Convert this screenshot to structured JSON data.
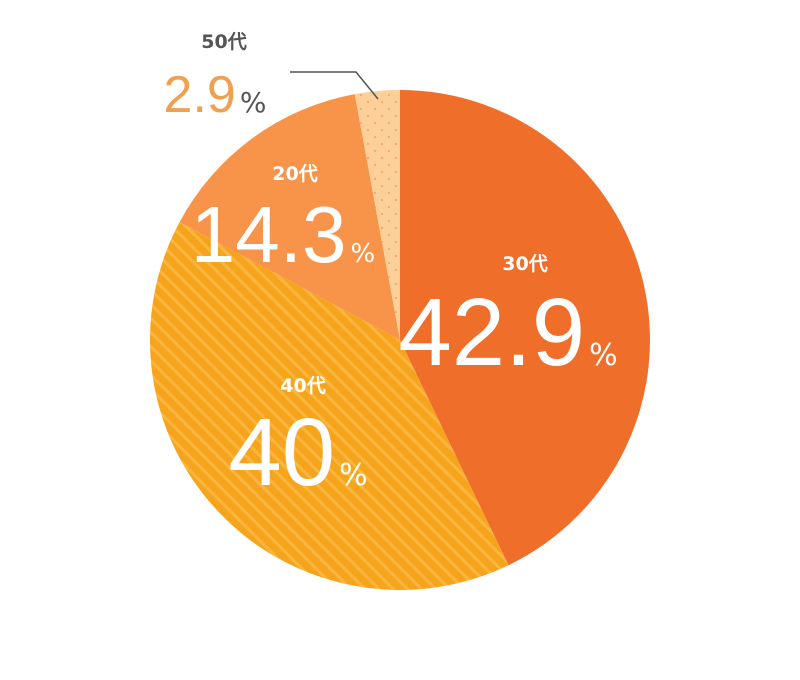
{
  "chart_data": {
    "type": "pie",
    "unit": "%",
    "slices": [
      {
        "label": "30代",
        "value": 42.9,
        "display": "42.9",
        "color": "#ee6e2a",
        "pattern": "solid"
      },
      {
        "label": "40代",
        "value": 40,
        "display": "40",
        "color": "#f7a41d",
        "pattern": "stripes"
      },
      {
        "label": "20代",
        "value": 14.3,
        "display": "14.3",
        "color": "#f8934a",
        "pattern": "solid"
      },
      {
        "label": "50代",
        "value": 2.9,
        "display": "2.9",
        "color": "#fcd098",
        "pattern": "dots"
      }
    ],
    "colors": {
      "label_inside": "#ffffff",
      "label_outside_name": "#555555",
      "label_outside_value": "#f0a050",
      "leader_line": "#555555"
    }
  }
}
